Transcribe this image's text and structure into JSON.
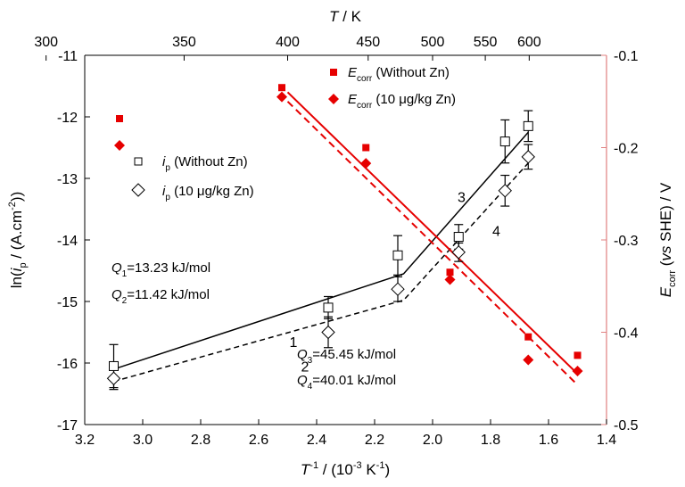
{
  "colors": {
    "black": "#000000",
    "red": "#e60000",
    "red_axis": "#e08080"
  },
  "chart_data": {
    "type": "scatter",
    "x_axis_bottom": {
      "label_prefix": "T",
      "label_sup": "-1",
      "label_mid": " / (10",
      "label_sup2": "-3",
      "label_mid2": " K",
      "label_sup3": "-1",
      "label_suffix": ")",
      "range": [
        3.2,
        1.4
      ],
      "reversed": true,
      "ticks": [
        3.2,
        3.0,
        2.8,
        2.6,
        2.4,
        2.2,
        2.0,
        1.8,
        1.6,
        1.4
      ],
      "tick_labels": [
        "3.2",
        "3.0",
        "2.8",
        "2.6",
        "2.4",
        "2.2",
        "2.0",
        "1.8",
        "1.6",
        "1.4"
      ]
    },
    "x_axis_top": {
      "label_italic": "T",
      "label_rest": " / K",
      "ticks": [
        300,
        350,
        400,
        450,
        500,
        550,
        600
      ],
      "tick_labels": [
        "300",
        "350",
        "400",
        "450",
        "500",
        "550",
        "600"
      ]
    },
    "y_axis_left": {
      "label_a": "ln(",
      "label_i": "i",
      "label_sub": "p",
      "label_b": " / (A.cm",
      "label_sup": "-2",
      "label_c": "))",
      "range": [
        -17,
        -11
      ],
      "ticks": [
        -17,
        -16,
        -15,
        -14,
        -13,
        -12,
        -11
      ],
      "tick_labels": [
        "-17",
        "-16",
        "-15",
        "-14",
        "-13",
        "-12",
        "-11"
      ]
    },
    "y_axis_right": {
      "label_e": "E",
      "label_sub": "corr",
      "label_a": " (",
      "label_vs": "vs",
      "label_b": " SHE) / V",
      "range": [
        -0.5,
        -0.1
      ],
      "ticks": [
        -0.5,
        -0.4,
        -0.3,
        -0.2,
        -0.1
      ],
      "tick_labels": [
        "-0.5",
        "-0.4",
        "-0.3",
        "-0.2",
        "-0.1"
      ]
    },
    "series": [
      {
        "name_i": "i",
        "name_sub": "p",
        "name_rest": " (Without Zn)",
        "marker": "open-square",
        "axis": "left",
        "x": [
          3.1,
          2.36,
          2.12,
          1.91,
          1.75,
          1.67
        ],
        "y": [
          -16.05,
          -15.1,
          -14.25,
          -13.95,
          -12.4,
          -12.15
        ],
        "err": [
          0.35,
          0.18,
          0.32,
          0.2,
          0.35,
          0.25
        ]
      },
      {
        "name_i": "i",
        "name_sub": "p",
        "name_rest_a": " (10 ",
        "name_mu": "μ",
        "name_rest_b": "g/kg Zn)",
        "marker": "open-diamond",
        "axis": "left",
        "x": [
          3.1,
          2.36,
          2.12,
          1.91,
          1.75,
          1.67
        ],
        "y": [
          -16.25,
          -15.5,
          -14.8,
          -14.2,
          -13.2,
          -12.65
        ],
        "err": [
          0.18,
          0.25,
          0.2,
          0.15,
          0.25,
          0.2
        ]
      },
      {
        "name_e": "E",
        "name_sub": "corr",
        "name_rest": " (Without Zn)",
        "marker": "filled-square",
        "axis": "right",
        "x": [
          2.52,
          2.23,
          1.94,
          1.67,
          1.5
        ],
        "y": [
          -0.135,
          -0.2,
          -0.335,
          -0.405,
          -0.425
        ]
      },
      {
        "name_e": "E",
        "name_sub": "corr",
        "name_rest_a": " (10 ",
        "name_mu": "μ",
        "name_rest_b": "g/kg Zn)",
        "marker": "filled-diamond",
        "axis": "right",
        "x": [
          2.52,
          2.23,
          1.94,
          1.67,
          1.5
        ],
        "y": [
          -0.145,
          -0.217,
          -0.343,
          -0.43,
          -0.442
        ]
      }
    ],
    "fit_lines": [
      {
        "axis": "left",
        "style": "solid",
        "color": "black",
        "x": [
          3.1,
          2.1,
          1.67
        ],
        "y": [
          -16.1,
          -14.55,
          -12.25
        ]
      },
      {
        "axis": "left",
        "style": "dashed",
        "color": "black",
        "x": [
          3.1,
          2.1,
          1.67
        ],
        "y": [
          -16.3,
          -14.98,
          -12.75
        ]
      },
      {
        "axis": "right",
        "style": "solid",
        "color": "red",
        "x": [
          2.5,
          1.5
        ],
        "y": [
          -0.14,
          -0.445
        ]
      },
      {
        "axis": "right",
        "style": "dashed",
        "color": "red",
        "x": [
          2.5,
          1.5
        ],
        "y": [
          -0.15,
          -0.457
        ]
      }
    ],
    "line_labels": [
      {
        "text": "1",
        "x": 2.48,
        "y": -15.65
      },
      {
        "text": "2",
        "x": 2.44,
        "y": -16.05
      },
      {
        "text": "3",
        "x": 1.9,
        "y": -13.3
      },
      {
        "text": "4",
        "x": 1.78,
        "y": -13.85
      }
    ],
    "annotations": {
      "q1": {
        "q": "Q",
        "sub": "1",
        "rest": "=13.23 kJ/mol"
      },
      "q2": {
        "q": "Q",
        "sub": "2",
        "rest": "=11.42 kJ/mol"
      },
      "q3": {
        "q": "Q",
        "sub": "3",
        "rest": "=45.45 kJ/mol"
      },
      "q4": {
        "q": "Q",
        "sub": "4",
        "rest": "=40.01 kJ/mol"
      }
    }
  }
}
